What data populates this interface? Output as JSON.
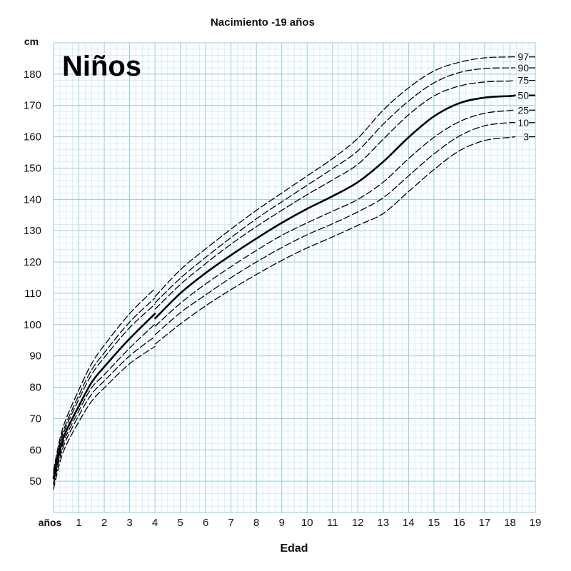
{
  "chart_data": {
    "type": "line",
    "title": "Nacimiento -19 años",
    "subtitle": "Niños",
    "xlabel": "Edad",
    "ylabel": "cm",
    "x_unit_label": "años",
    "xlim": [
      0,
      19
    ],
    "ylim": [
      40,
      190
    ],
    "grid": true,
    "x_ticks": [
      1,
      2,
      3,
      4,
      5,
      6,
      7,
      8,
      9,
      10,
      11,
      12,
      13,
      14,
      15,
      16,
      17,
      18,
      19
    ],
    "y_ticks": [
      50,
      60,
      70,
      80,
      90,
      100,
      110,
      120,
      130,
      140,
      150,
      160,
      170,
      180
    ],
    "series": [
      {
        "name": "97",
        "style": "dashed",
        "x": [
          0,
          0.25,
          0.5,
          1,
          1.5,
          2,
          3,
          4,
          4.01,
          5,
          6,
          7,
          8,
          9,
          10,
          11,
          12,
          13,
          14,
          15,
          16,
          17,
          18,
          18.2
        ],
        "y": [
          53.4,
          63.5,
          70,
          79.2,
          87.5,
          93.4,
          103.5,
          111.5,
          109,
          117.5,
          124.2,
          130.5,
          136.5,
          142.0,
          147.5,
          153.0,
          159.5,
          168.5,
          175.6,
          181.0,
          183.8,
          185.2,
          185.5,
          185.5
        ]
      },
      {
        "name": "90",
        "style": "dashed",
        "x": [
          0,
          0.25,
          0.5,
          1,
          1.5,
          2,
          3,
          4,
          4.01,
          5,
          6,
          7,
          8,
          9,
          10,
          11,
          12,
          13,
          14,
          15,
          16,
          17,
          18,
          18.2
        ],
        "y": [
          52.5,
          62.5,
          68.5,
          77.5,
          85.5,
          91.0,
          100.8,
          108.5,
          107,
          114.8,
          121.5,
          127.8,
          133.8,
          139.2,
          144.5,
          149.8,
          155.5,
          164.0,
          171.4,
          177.2,
          180.5,
          181.8,
          182.0,
          182.0
        ]
      },
      {
        "name": "75",
        "style": "dashed",
        "x": [
          0,
          0.25,
          0.5,
          1,
          1.5,
          2,
          3,
          4,
          4.01,
          5,
          6,
          7,
          8,
          9,
          10,
          11,
          12,
          13,
          14,
          15,
          16,
          17,
          18,
          18.2
        ],
        "y": [
          51.5,
          61.5,
          67.5,
          76.2,
          84.0,
          89.5,
          99.0,
          106.5,
          105,
          112.8,
          119.5,
          125.7,
          131.3,
          136.5,
          141.5,
          146.2,
          151.2,
          159.2,
          167.0,
          173.0,
          176.2,
          177.5,
          177.8,
          178.0
        ]
      },
      {
        "name": "50",
        "style": "solid",
        "x": [
          0,
          0.25,
          0.5,
          1,
          1.5,
          2,
          3,
          4,
          4.01,
          5,
          6,
          7,
          8,
          9,
          10,
          11,
          12,
          13,
          14,
          15,
          16,
          17,
          18,
          18.2
        ],
        "y": [
          51.0,
          60.0,
          66.0,
          74.0,
          81.5,
          86.5,
          95.5,
          103.5,
          102,
          110.0,
          116.5,
          122.2,
          127.5,
          132.5,
          137.0,
          141.0,
          145.5,
          152.0,
          159.8,
          166.5,
          170.7,
          172.5,
          173.0,
          173.2
        ]
      },
      {
        "name": "25",
        "style": "dashed",
        "x": [
          0,
          0.25,
          0.5,
          1,
          1.5,
          2,
          3,
          4,
          4.01,
          5,
          6,
          7,
          8,
          9,
          10,
          11,
          12,
          13,
          14,
          15,
          16,
          17,
          18,
          18.2
        ],
        "y": [
          49.5,
          58.5,
          64.5,
          72.5,
          79.8,
          84.0,
          92.5,
          100.2,
          99.5,
          106.8,
          113.0,
          118.5,
          123.7,
          128.5,
          132.5,
          136.2,
          140.0,
          145.5,
          153.0,
          159.8,
          164.8,
          167.5,
          168.4,
          168.5
        ]
      },
      {
        "name": "10",
        "style": "dashed",
        "x": [
          0,
          0.25,
          0.5,
          1,
          1.5,
          2,
          3,
          4,
          4.01,
          5,
          6,
          7,
          8,
          9,
          10,
          11,
          12,
          13,
          14,
          15,
          16,
          17,
          18,
          18.2
        ],
        "y": [
          48.8,
          57.5,
          63.2,
          71.0,
          77.8,
          82.0,
          90.0,
          96.2,
          96.8,
          103.8,
          109.5,
          115.0,
          120.0,
          124.6,
          128.7,
          132.2,
          136.0,
          140.5,
          147.5,
          154.5,
          160.2,
          163.5,
          164.5,
          164.5
        ]
      },
      {
        "name": "3",
        "style": "dashed",
        "x": [
          0,
          0.25,
          0.5,
          1,
          1.5,
          2,
          3,
          4,
          4.01,
          5,
          6,
          7,
          8,
          9,
          10,
          11,
          12,
          13,
          14,
          15,
          16,
          17,
          18,
          18.2
        ],
        "y": [
          47.5,
          56.0,
          61.5,
          69.0,
          75.5,
          79.8,
          87.5,
          93.0,
          93.8,
          100.2,
          106.0,
          111.2,
          116.0,
          120.5,
          124.5,
          128.0,
          131.7,
          135.5,
          142.5,
          149.5,
          155.5,
          158.8,
          159.8,
          160.0
        ]
      }
    ],
    "colors": {
      "grid_minor": "#bfe2ef",
      "grid_major": "#8fcbe0",
      "curve": "#000000",
      "background": "#ffffff"
    }
  }
}
